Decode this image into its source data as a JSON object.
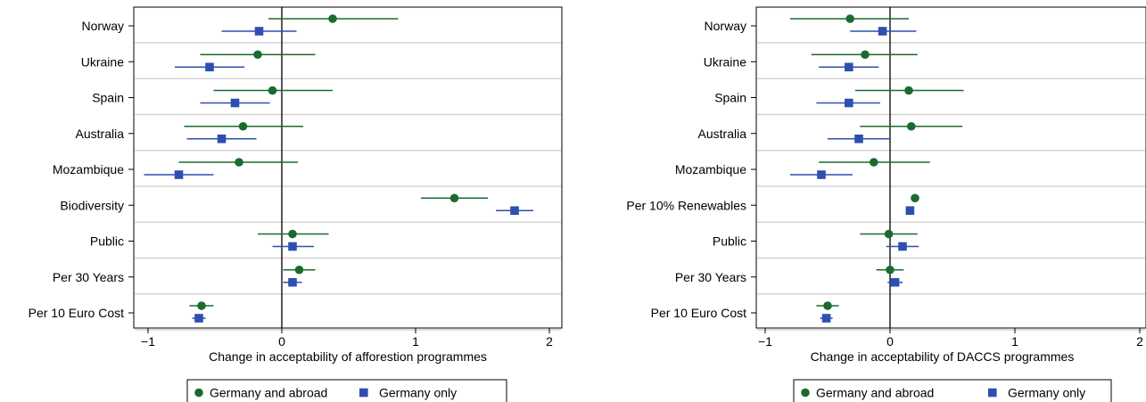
{
  "colors": {
    "series1": "#1a6b2e",
    "series2": "#2f4fb0",
    "grid": "#d4d4d4",
    "zero_line": "#000000"
  },
  "legend": {
    "items": [
      "Germany and abroad",
      "Germany only"
    ]
  },
  "chart_data": [
    {
      "type": "scatter",
      "title": "",
      "xlabel": "Change in acceptability of afforestion programmes",
      "xlim": [
        -1.1,
        2.1
      ],
      "xticks": [
        -1,
        0,
        1,
        2
      ],
      "xtick_labels": [
        "−1",
        "0",
        "1",
        "2"
      ],
      "categories": [
        "Norway",
        "Ukraine",
        "Spain",
        "Australia",
        "Mozambique",
        "Biodiversity",
        "Public",
        "Per 30 Years",
        "Per 10 Euro Cost"
      ],
      "series": [
        {
          "name": "Germany and abroad",
          "marker": "circle",
          "values": [
            0.38,
            -0.18,
            -0.07,
            -0.29,
            -0.32,
            1.29,
            0.08,
            0.13,
            -0.6
          ],
          "ci_low": [
            -0.1,
            -0.61,
            -0.51,
            -0.73,
            -0.77,
            1.04,
            -0.18,
            0.01,
            -0.69
          ],
          "ci_high": [
            0.87,
            0.25,
            0.38,
            0.16,
            0.12,
            1.54,
            0.35,
            0.25,
            -0.51
          ]
        },
        {
          "name": "Germany only",
          "marker": "square",
          "values": [
            -0.17,
            -0.54,
            -0.35,
            -0.45,
            -0.77,
            1.74,
            0.08,
            0.08,
            -0.62
          ],
          "ci_low": [
            -0.45,
            -0.8,
            -0.61,
            -0.71,
            -1.03,
            1.6,
            -0.07,
            0.01,
            -0.67
          ],
          "ci_high": [
            0.11,
            -0.28,
            -0.09,
            -0.19,
            -0.51,
            1.88,
            0.24,
            0.15,
            -0.57
          ]
        }
      ],
      "grid": true,
      "legend_position": "bottom"
    },
    {
      "type": "scatter",
      "title": "",
      "xlabel": "Change in acceptability of DACCS programmes",
      "xlim": [
        -1.1,
        2.1
      ],
      "xticks": [
        -1,
        0,
        1,
        2
      ],
      "xtick_labels": [
        "−1",
        "0",
        "1",
        "2"
      ],
      "categories": [
        "Norway",
        "Ukraine",
        "Spain",
        "Australia",
        "Mozambique",
        "Per 10% Renewables",
        "Public",
        "Per 30 Years",
        "Per 10 Euro Cost"
      ],
      "series": [
        {
          "name": "Germany and abroad",
          "marker": "circle",
          "values": [
            -0.32,
            -0.2,
            0.15,
            0.17,
            -0.13,
            0.2,
            -0.01,
            0.0,
            -0.5
          ],
          "ci_low": [
            -0.8,
            -0.63,
            -0.28,
            -0.24,
            -0.57,
            0.18,
            -0.24,
            -0.11,
            -0.59
          ],
          "ci_high": [
            0.15,
            0.22,
            0.59,
            0.58,
            0.32,
            0.22,
            0.22,
            0.11,
            -0.41
          ]
        },
        {
          "name": "Germany only",
          "marker": "square",
          "values": [
            -0.06,
            -0.33,
            -0.33,
            -0.25,
            -0.55,
            0.16,
            0.1,
            0.04,
            -0.51
          ],
          "ci_low": [
            -0.32,
            -0.57,
            -0.59,
            -0.5,
            -0.8,
            0.15,
            -0.03,
            -0.02,
            -0.56
          ],
          "ci_high": [
            0.21,
            -0.09,
            -0.08,
            0.0,
            -0.3,
            0.17,
            0.23,
            0.1,
            -0.46
          ]
        }
      ],
      "grid": true,
      "legend_position": "bottom"
    }
  ]
}
